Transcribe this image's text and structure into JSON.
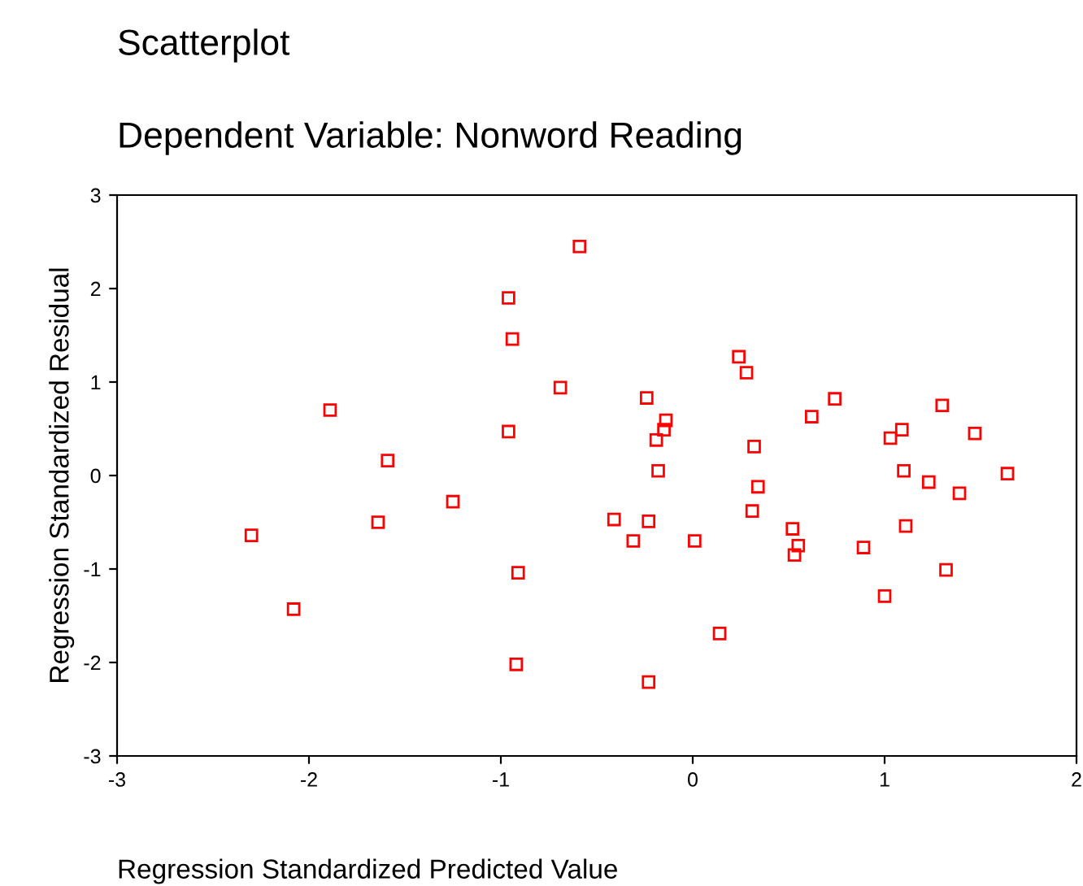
{
  "chart_data": {
    "type": "scatter",
    "title": "Scatterplot",
    "subtitle": "Dependent Variable: Nonword Reading",
    "xlabel": "Regression Standardized Predicted Value",
    "ylabel": "Regression Standardized Residual",
    "marker": "square",
    "grid": false,
    "xlim": [
      -3,
      2
    ],
    "ylim": [
      -3,
      3
    ],
    "xticks": [
      -3,
      -2,
      -1,
      0,
      1,
      2
    ],
    "yticks": [
      -3,
      -2,
      -1,
      0,
      1,
      2,
      3
    ],
    "series": [
      {
        "color": "#ff0000",
        "x": [
          -2.3,
          -2.08,
          -1.89,
          -1.64,
          -1.59,
          -1.25,
          -0.96,
          -0.94,
          -0.96,
          -0.91,
          -0.92,
          -0.69,
          -0.59,
          -0.41,
          -0.31,
          -0.24,
          -0.23,
          -0.23,
          -0.19,
          -0.18,
          -0.15,
          -0.14,
          0.01,
          0.14,
          0.24,
          0.28,
          0.31,
          0.32,
          0.34,
          0.52,
          0.53,
          0.55,
          0.62,
          0.74,
          0.89,
          1.0,
          1.03,
          1.09,
          1.1,
          1.11,
          1.23,
          1.3,
          1.32,
          1.39,
          1.47,
          1.64
        ],
        "values": [
          -0.64,
          -1.43,
          0.7,
          -0.5,
          0.16,
          -0.28,
          1.9,
          1.46,
          0.47,
          -1.04,
          -2.02,
          0.94,
          2.45,
          -0.47,
          -0.7,
          0.83,
          -0.49,
          -2.21,
          0.38,
          0.05,
          0.49,
          0.59,
          -0.7,
          -1.69,
          1.27,
          1.1,
          -0.38,
          0.31,
          -0.12,
          -0.57,
          -0.85,
          -0.75,
          0.63,
          0.82,
          -0.77,
          -1.29,
          0.4,
          0.49,
          0.05,
          -0.54,
          -0.07,
          0.75,
          -1.01,
          -0.19,
          0.45,
          0.02
        ]
      }
    ]
  }
}
